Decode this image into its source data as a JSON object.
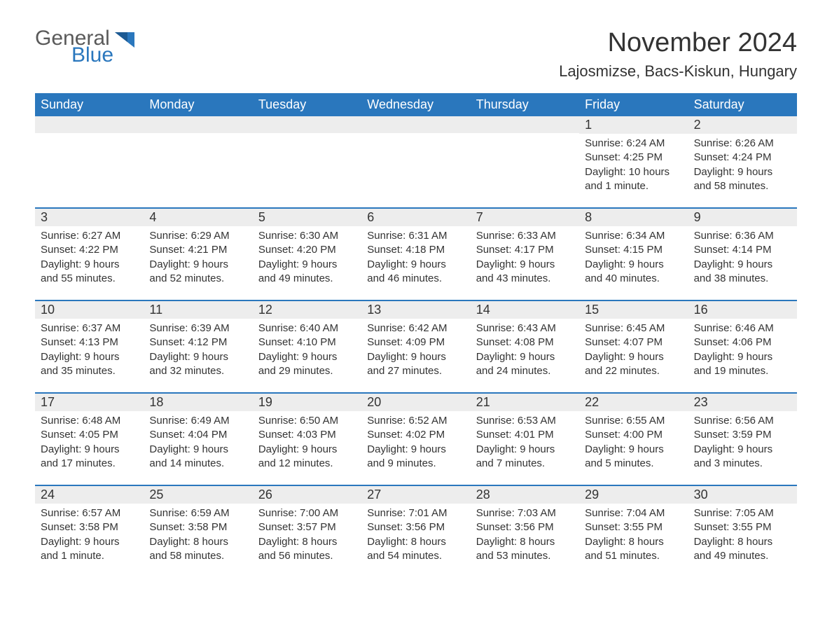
{
  "logo": {
    "word1": "General",
    "word2": "Blue",
    "brand_color": "#2a77bd",
    "gray": "#5a5a5a"
  },
  "title": "November 2024",
  "location": "Lajosmizse, Bacs-Kiskun, Hungary",
  "colors": {
    "header_bg": "#2a77bd",
    "header_text": "#ffffff",
    "daynum_bg": "#ededed",
    "text": "#333333",
    "rule": "#2a77bd",
    "page_bg": "#ffffff"
  },
  "fonts": {
    "title_size": 38,
    "location_size": 22,
    "dayheader_size": 18,
    "daynum_size": 18,
    "detail_size": 15
  },
  "day_headers": [
    "Sunday",
    "Monday",
    "Tuesday",
    "Wednesday",
    "Thursday",
    "Friday",
    "Saturday"
  ],
  "weeks": [
    [
      null,
      null,
      null,
      null,
      null,
      {
        "n": "1",
        "sunrise": "Sunrise: 6:24 AM",
        "sunset": "Sunset: 4:25 PM",
        "daylight1": "Daylight: 10 hours",
        "daylight2": "and 1 minute."
      },
      {
        "n": "2",
        "sunrise": "Sunrise: 6:26 AM",
        "sunset": "Sunset: 4:24 PM",
        "daylight1": "Daylight: 9 hours",
        "daylight2": "and 58 minutes."
      }
    ],
    [
      {
        "n": "3",
        "sunrise": "Sunrise: 6:27 AM",
        "sunset": "Sunset: 4:22 PM",
        "daylight1": "Daylight: 9 hours",
        "daylight2": "and 55 minutes."
      },
      {
        "n": "4",
        "sunrise": "Sunrise: 6:29 AM",
        "sunset": "Sunset: 4:21 PM",
        "daylight1": "Daylight: 9 hours",
        "daylight2": "and 52 minutes."
      },
      {
        "n": "5",
        "sunrise": "Sunrise: 6:30 AM",
        "sunset": "Sunset: 4:20 PM",
        "daylight1": "Daylight: 9 hours",
        "daylight2": "and 49 minutes."
      },
      {
        "n": "6",
        "sunrise": "Sunrise: 6:31 AM",
        "sunset": "Sunset: 4:18 PM",
        "daylight1": "Daylight: 9 hours",
        "daylight2": "and 46 minutes."
      },
      {
        "n": "7",
        "sunrise": "Sunrise: 6:33 AM",
        "sunset": "Sunset: 4:17 PM",
        "daylight1": "Daylight: 9 hours",
        "daylight2": "and 43 minutes."
      },
      {
        "n": "8",
        "sunrise": "Sunrise: 6:34 AM",
        "sunset": "Sunset: 4:15 PM",
        "daylight1": "Daylight: 9 hours",
        "daylight2": "and 40 minutes."
      },
      {
        "n": "9",
        "sunrise": "Sunrise: 6:36 AM",
        "sunset": "Sunset: 4:14 PM",
        "daylight1": "Daylight: 9 hours",
        "daylight2": "and 38 minutes."
      }
    ],
    [
      {
        "n": "10",
        "sunrise": "Sunrise: 6:37 AM",
        "sunset": "Sunset: 4:13 PM",
        "daylight1": "Daylight: 9 hours",
        "daylight2": "and 35 minutes."
      },
      {
        "n": "11",
        "sunrise": "Sunrise: 6:39 AM",
        "sunset": "Sunset: 4:12 PM",
        "daylight1": "Daylight: 9 hours",
        "daylight2": "and 32 minutes."
      },
      {
        "n": "12",
        "sunrise": "Sunrise: 6:40 AM",
        "sunset": "Sunset: 4:10 PM",
        "daylight1": "Daylight: 9 hours",
        "daylight2": "and 29 minutes."
      },
      {
        "n": "13",
        "sunrise": "Sunrise: 6:42 AM",
        "sunset": "Sunset: 4:09 PM",
        "daylight1": "Daylight: 9 hours",
        "daylight2": "and 27 minutes."
      },
      {
        "n": "14",
        "sunrise": "Sunrise: 6:43 AM",
        "sunset": "Sunset: 4:08 PM",
        "daylight1": "Daylight: 9 hours",
        "daylight2": "and 24 minutes."
      },
      {
        "n": "15",
        "sunrise": "Sunrise: 6:45 AM",
        "sunset": "Sunset: 4:07 PM",
        "daylight1": "Daylight: 9 hours",
        "daylight2": "and 22 minutes."
      },
      {
        "n": "16",
        "sunrise": "Sunrise: 6:46 AM",
        "sunset": "Sunset: 4:06 PM",
        "daylight1": "Daylight: 9 hours",
        "daylight2": "and 19 minutes."
      }
    ],
    [
      {
        "n": "17",
        "sunrise": "Sunrise: 6:48 AM",
        "sunset": "Sunset: 4:05 PM",
        "daylight1": "Daylight: 9 hours",
        "daylight2": "and 17 minutes."
      },
      {
        "n": "18",
        "sunrise": "Sunrise: 6:49 AM",
        "sunset": "Sunset: 4:04 PM",
        "daylight1": "Daylight: 9 hours",
        "daylight2": "and 14 minutes."
      },
      {
        "n": "19",
        "sunrise": "Sunrise: 6:50 AM",
        "sunset": "Sunset: 4:03 PM",
        "daylight1": "Daylight: 9 hours",
        "daylight2": "and 12 minutes."
      },
      {
        "n": "20",
        "sunrise": "Sunrise: 6:52 AM",
        "sunset": "Sunset: 4:02 PM",
        "daylight1": "Daylight: 9 hours",
        "daylight2": "and 9 minutes."
      },
      {
        "n": "21",
        "sunrise": "Sunrise: 6:53 AM",
        "sunset": "Sunset: 4:01 PM",
        "daylight1": "Daylight: 9 hours",
        "daylight2": "and 7 minutes."
      },
      {
        "n": "22",
        "sunrise": "Sunrise: 6:55 AM",
        "sunset": "Sunset: 4:00 PM",
        "daylight1": "Daylight: 9 hours",
        "daylight2": "and 5 minutes."
      },
      {
        "n": "23",
        "sunrise": "Sunrise: 6:56 AM",
        "sunset": "Sunset: 3:59 PM",
        "daylight1": "Daylight: 9 hours",
        "daylight2": "and 3 minutes."
      }
    ],
    [
      {
        "n": "24",
        "sunrise": "Sunrise: 6:57 AM",
        "sunset": "Sunset: 3:58 PM",
        "daylight1": "Daylight: 9 hours",
        "daylight2": "and 1 minute."
      },
      {
        "n": "25",
        "sunrise": "Sunrise: 6:59 AM",
        "sunset": "Sunset: 3:58 PM",
        "daylight1": "Daylight: 8 hours",
        "daylight2": "and 58 minutes."
      },
      {
        "n": "26",
        "sunrise": "Sunrise: 7:00 AM",
        "sunset": "Sunset: 3:57 PM",
        "daylight1": "Daylight: 8 hours",
        "daylight2": "and 56 minutes."
      },
      {
        "n": "27",
        "sunrise": "Sunrise: 7:01 AM",
        "sunset": "Sunset: 3:56 PM",
        "daylight1": "Daylight: 8 hours",
        "daylight2": "and 54 minutes."
      },
      {
        "n": "28",
        "sunrise": "Sunrise: 7:03 AM",
        "sunset": "Sunset: 3:56 PM",
        "daylight1": "Daylight: 8 hours",
        "daylight2": "and 53 minutes."
      },
      {
        "n": "29",
        "sunrise": "Sunrise: 7:04 AM",
        "sunset": "Sunset: 3:55 PM",
        "daylight1": "Daylight: 8 hours",
        "daylight2": "and 51 minutes."
      },
      {
        "n": "30",
        "sunrise": "Sunrise: 7:05 AM",
        "sunset": "Sunset: 3:55 PM",
        "daylight1": "Daylight: 8 hours",
        "daylight2": "and 49 minutes."
      }
    ]
  ]
}
